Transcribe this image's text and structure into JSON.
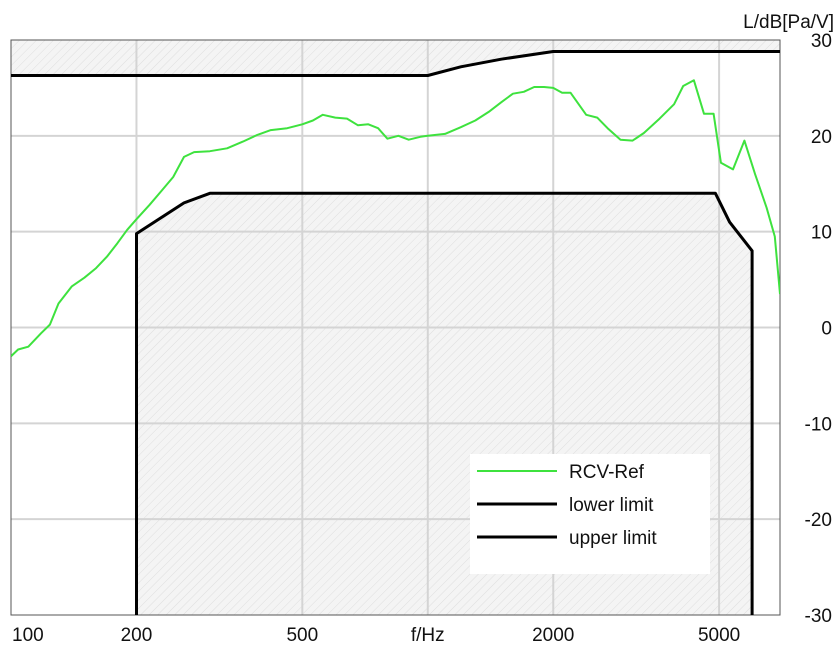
{
  "chart_data": {
    "type": "line",
    "xscale": "log",
    "xlabel": "f/Hz",
    "ylabel": "L/dB[Pa/V]",
    "xlim": [
      100,
      7000
    ],
    "ylim": [
      -30,
      30
    ],
    "grid": true,
    "legend_position": "bottom-right",
    "x_ticks": [
      {
        "value": 100,
        "label": "100"
      },
      {
        "value": 200,
        "label": "200"
      },
      {
        "value": 500,
        "label": "500"
      },
      {
        "value": 1000,
        "label": "f/Hz"
      },
      {
        "value": 2000,
        "label": "2000"
      },
      {
        "value": 5000,
        "label": "5000"
      }
    ],
    "y_ticks": [
      {
        "value": 30,
        "label": "30"
      },
      {
        "value": 20,
        "label": "20"
      },
      {
        "value": 10,
        "label": "10"
      },
      {
        "value": 0,
        "label": "0"
      },
      {
        "value": -10,
        "label": "-10"
      },
      {
        "value": -20,
        "label": "-20"
      },
      {
        "value": -30,
        "label": "-30"
      }
    ],
    "series": [
      {
        "name": "RCV-Ref",
        "color": "#3ee23e",
        "points": [
          [
            100,
            -3.0
          ],
          [
            104,
            -2.3
          ],
          [
            110,
            -2.0
          ],
          [
            118,
            -0.6
          ],
          [
            124,
            0.3
          ],
          [
            130,
            2.5
          ],
          [
            140,
            4.3
          ],
          [
            150,
            5.2
          ],
          [
            160,
            6.2
          ],
          [
            170,
            7.4
          ],
          [
            180,
            8.8
          ],
          [
            190,
            10.2
          ],
          [
            200,
            11.3
          ],
          [
            215,
            12.8
          ],
          [
            230,
            14.3
          ],
          [
            245,
            15.7
          ],
          [
            260,
            17.8
          ],
          [
            275,
            18.3
          ],
          [
            300,
            18.4
          ],
          [
            330,
            18.7
          ],
          [
            360,
            19.4
          ],
          [
            390,
            20.1
          ],
          [
            420,
            20.6
          ],
          [
            460,
            20.8
          ],
          [
            500,
            21.2
          ],
          [
            530,
            21.6
          ],
          [
            560,
            22.2
          ],
          [
            600,
            21.9
          ],
          [
            640,
            21.8
          ],
          [
            680,
            21.1
          ],
          [
            720,
            21.2
          ],
          [
            760,
            20.8
          ],
          [
            800,
            19.7
          ],
          [
            850,
            20.0
          ],
          [
            900,
            19.6
          ],
          [
            960,
            19.9
          ],
          [
            1000,
            20.0
          ],
          [
            1100,
            20.2
          ],
          [
            1200,
            20.9
          ],
          [
            1300,
            21.6
          ],
          [
            1400,
            22.5
          ],
          [
            1500,
            23.5
          ],
          [
            1600,
            24.4
          ],
          [
            1700,
            24.6
          ],
          [
            1800,
            25.1
          ],
          [
            1900,
            25.1
          ],
          [
            2000,
            25.0
          ],
          [
            2100,
            24.5
          ],
          [
            2200,
            24.5
          ],
          [
            2400,
            22.2
          ],
          [
            2550,
            21.9
          ],
          [
            2700,
            20.8
          ],
          [
            2900,
            19.6
          ],
          [
            3100,
            19.5
          ],
          [
            3300,
            20.3
          ],
          [
            3600,
            21.8
          ],
          [
            3900,
            23.3
          ],
          [
            4100,
            25.2
          ],
          [
            4350,
            25.8
          ],
          [
            4600,
            22.3
          ],
          [
            4850,
            22.3
          ],
          [
            5050,
            17.2
          ],
          [
            5400,
            16.5
          ],
          [
            5750,
            19.5
          ],
          [
            6100,
            16.0
          ],
          [
            6500,
            12.5
          ],
          [
            6800,
            9.5
          ],
          [
            7000,
            3.5
          ]
        ]
      },
      {
        "name": "lower limit",
        "color": "#000000",
        "points": [
          [
            200,
            -30
          ],
          [
            200,
            9.8
          ],
          [
            260,
            13.0
          ],
          [
            300,
            14.0
          ],
          [
            4900,
            14.0
          ],
          [
            5300,
            11.0
          ],
          [
            6000,
            8.0
          ],
          [
            6000,
            -30
          ]
        ]
      },
      {
        "name": "upper limit",
        "color": "#000000",
        "points": [
          [
            100,
            26.3
          ],
          [
            1000,
            26.3
          ],
          [
            1200,
            27.2
          ],
          [
            1500,
            28.0
          ],
          [
            2000,
            28.8
          ],
          [
            7000,
            28.8
          ]
        ]
      }
    ]
  }
}
